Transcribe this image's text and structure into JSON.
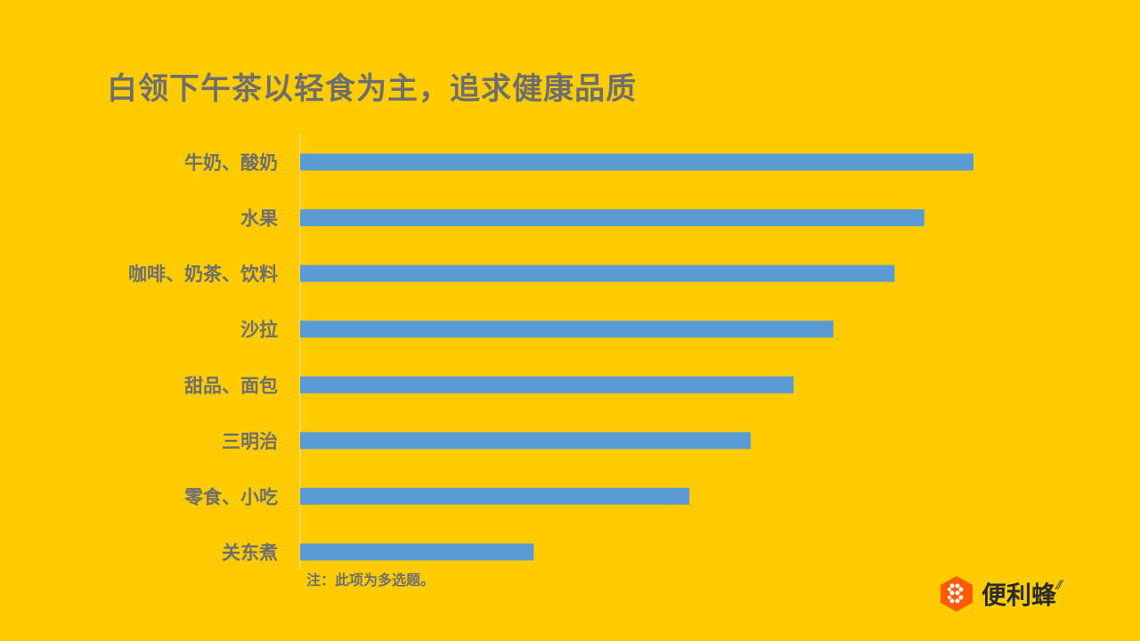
{
  "chart_data": {
    "type": "bar",
    "orientation": "horizontal",
    "title": "白领下午茶以轻食为主，追求健康品质",
    "categories": [
      "牛奶、酸奶",
      "水果",
      "咖啡、奶茶、饮料",
      "沙拉",
      "甜品、面包",
      "三明治",
      "零食、小吃",
      "关东煮"
    ],
    "values": [
      100,
      92.7,
      88.3,
      79.2,
      73.3,
      66.9,
      57.8,
      34.7
    ],
    "bar_color": "#5B9BD5",
    "grid": false,
    "legend": "none"
  },
  "note": "注：此项为多选题。",
  "brand": {
    "name": "便利蜂",
    "logo_color": "#FF5A00"
  },
  "colors": {
    "background": "#FFCC00",
    "text": "#6E6E6E"
  }
}
